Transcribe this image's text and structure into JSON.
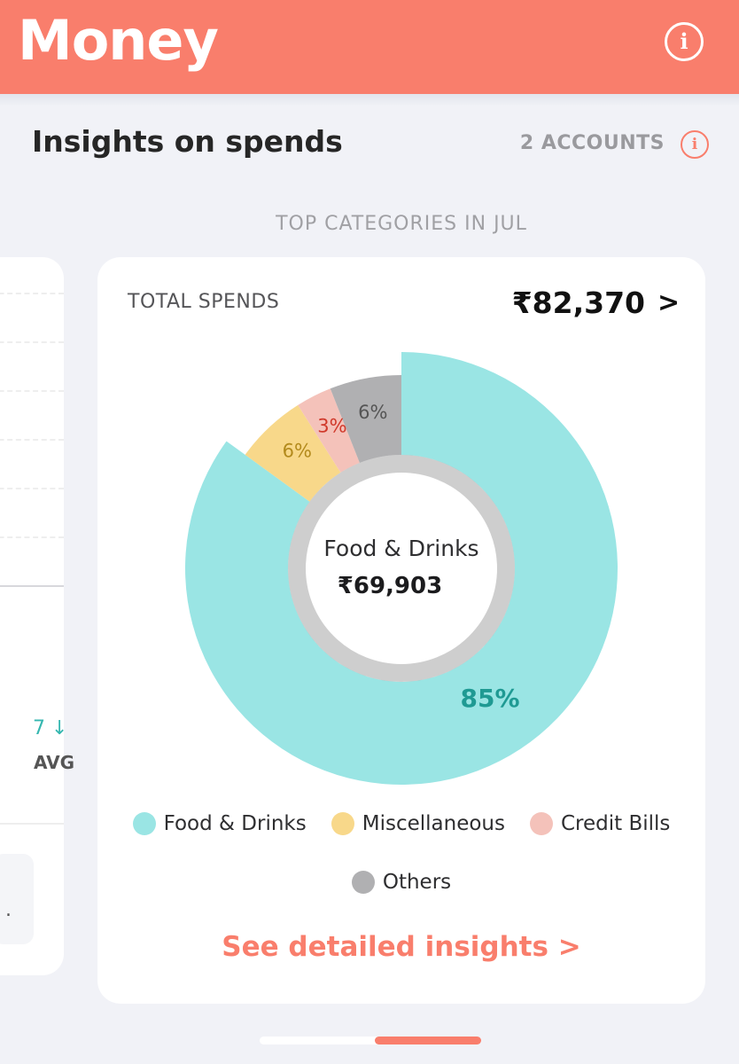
{
  "header": {
    "title": "Money",
    "info_icon": "info-icon",
    "info_glyph": "i"
  },
  "insights": {
    "title": "Insights on spends",
    "accounts_label": "2 ACCOUNTS",
    "accounts_info_glyph": "i",
    "period_label": "TOP CATEGORIES IN JUL"
  },
  "left_card": {
    "avg_label": "AVG",
    "arrows": "7 ↓",
    "ellipsis": "."
  },
  "card": {
    "total_label": "TOTAL SPENDS",
    "total_value": "₹82,370",
    "chevron": ">",
    "center_category": "Food & Drinks",
    "center_amount": "₹69,903",
    "cta_label": "See detailed insights >"
  },
  "chart_data": {
    "type": "pie",
    "title": "TOP CATEGORIES IN JUL",
    "categories": [
      "Food & Drinks",
      "Miscellaneous",
      "Credit Bills",
      "Others"
    ],
    "values": [
      85,
      6,
      3,
      6
    ],
    "labels": [
      "85%",
      "6%",
      "3%",
      "6%"
    ],
    "colors": [
      "#9ae5e4",
      "#f8d88a",
      "#f4c2ba",
      "#b0b0b2"
    ],
    "label_colors": [
      "#1f9a93",
      "#b38a1c",
      "#d0392b",
      "#555555"
    ],
    "highlighted": "Food & Drinks",
    "legend_position": "bottom"
  },
  "colors": {
    "accent": "#f97e6c",
    "background": "#f1f2f7"
  }
}
